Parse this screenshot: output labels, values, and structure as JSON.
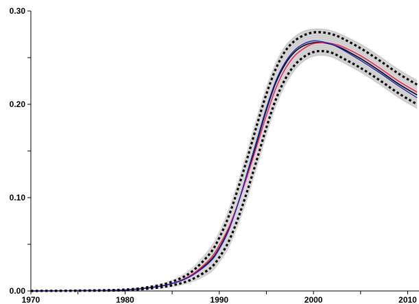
{
  "chart_data": {
    "type": "line",
    "title": "",
    "xlabel": "",
    "ylabel": "",
    "xlim": [
      1970,
      2011.2
    ],
    "ylim": [
      0,
      0.3
    ],
    "x_ticks": [
      1970,
      1975,
      1980,
      1985,
      1990,
      1995,
      2000,
      2005,
      2010
    ],
    "x_tick_labels": [
      {
        "value": 1970,
        "label": "1970"
      },
      {
        "value": 1980,
        "label": "1980"
      },
      {
        "value": 1990,
        "label": "1990"
      },
      {
        "value": 2000,
        "label": "2000"
      },
      {
        "value": 2010,
        "label": "2010"
      }
    ],
    "y_ticks": [
      0,
      0.05,
      0.1,
      0.15,
      0.2,
      0.25,
      0.3
    ],
    "y_tick_labels": [
      {
        "value": 0.0,
        "label": "0.00"
      },
      {
        "value": 0.1,
        "label": "0.10"
      },
      {
        "value": 0.2,
        "label": "0.20"
      },
      {
        "value": 0.3,
        "label": "0.30"
      }
    ],
    "grid": false,
    "legend": "none",
    "x": [
      1970,
      1975,
      1980,
      1983,
      1985,
      1987,
      1989,
      1990,
      1991,
      1992,
      1993,
      1994,
      1995,
      1996,
      1997,
      1998,
      1999,
      2000,
      2001,
      2002,
      2003,
      2005,
      2007,
      2009,
      2011
    ],
    "series": [
      {
        "role": "median",
        "color": "#000000",
        "style": "solid",
        "values": [
          0,
          0.0003,
          0.001,
          0.004,
          0.008,
          0.016,
          0.032,
          0.046,
          0.066,
          0.094,
          0.126,
          0.16,
          0.194,
          0.223,
          0.243,
          0.256,
          0.263,
          0.266,
          0.266,
          0.264,
          0.26,
          0.249,
          0.236,
          0.222,
          0.21
        ]
      },
      {
        "role": "estimate",
        "color": "#ee1c4e",
        "style": "solid",
        "values": [
          0,
          0.0003,
          0.001,
          0.004,
          0.008,
          0.017,
          0.034,
          0.049,
          0.068,
          0.094,
          0.124,
          0.156,
          0.188,
          0.217,
          0.238,
          0.252,
          0.26,
          0.265,
          0.266,
          0.265,
          0.262,
          0.252,
          0.239,
          0.225,
          0.213
        ]
      },
      {
        "role": "estimate",
        "color": "#2222bb",
        "style": "solid",
        "values": [
          0,
          0.0003,
          0.001,
          0.004,
          0.008,
          0.016,
          0.031,
          0.045,
          0.065,
          0.094,
          0.128,
          0.162,
          0.196,
          0.225,
          0.245,
          0.258,
          0.265,
          0.268,
          0.267,
          0.264,
          0.259,
          0.247,
          0.234,
          0.22,
          0.207
        ]
      },
      {
        "role": "upper-bound",
        "color": "#000000",
        "style": "dotted",
        "values": [
          0,
          0.0004,
          0.0015,
          0.005,
          0.01,
          0.02,
          0.04,
          0.057,
          0.08,
          0.11,
          0.143,
          0.178,
          0.211,
          0.238,
          0.257,
          0.268,
          0.274,
          0.277,
          0.277,
          0.275,
          0.271,
          0.26,
          0.247,
          0.233,
          0.221
        ]
      },
      {
        "role": "lower-bound",
        "color": "#000000",
        "style": "dotted",
        "values": [
          0,
          0.0002,
          0.0007,
          0.003,
          0.006,
          0.012,
          0.024,
          0.036,
          0.053,
          0.078,
          0.108,
          0.141,
          0.175,
          0.205,
          0.227,
          0.242,
          0.251,
          0.256,
          0.257,
          0.255,
          0.25,
          0.239,
          0.226,
          0.212,
          0.2
        ]
      }
    ],
    "envelope": {
      "color": "#c9c9c9",
      "upper": [
        0,
        0.0005,
        0.002,
        0.006,
        0.012,
        0.024,
        0.046,
        0.064,
        0.088,
        0.118,
        0.152,
        0.187,
        0.219,
        0.245,
        0.263,
        0.273,
        0.279,
        0.281,
        0.281,
        0.279,
        0.275,
        0.265,
        0.252,
        0.238,
        0.226
      ],
      "lower": [
        0,
        0.0001,
        0.0004,
        0.002,
        0.004,
        0.009,
        0.019,
        0.03,
        0.046,
        0.07,
        0.099,
        0.132,
        0.166,
        0.197,
        0.22,
        0.236,
        0.246,
        0.251,
        0.252,
        0.25,
        0.245,
        0.234,
        0.221,
        0.207,
        0.195
      ]
    }
  }
}
